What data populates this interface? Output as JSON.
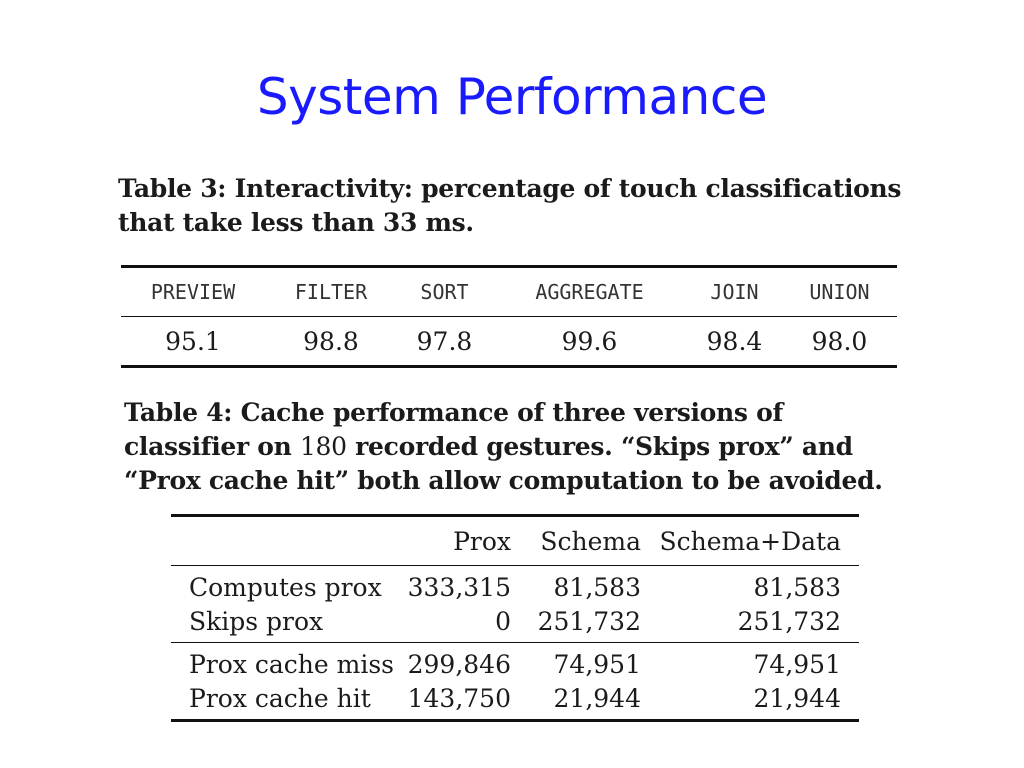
{
  "slide": {
    "title": "System Performance"
  },
  "table3": {
    "caption_label": "Table 3:",
    "caption_text": " Interactivity: percentage of touch classifications that take less than 33 ms.",
    "headers": [
      "PREVIEW",
      "FILTER",
      "SORT",
      "AGGREGATE",
      "JOIN",
      "UNION"
    ],
    "values": [
      "95.1",
      "98.8",
      "97.8",
      "99.6",
      "98.4",
      "98.0"
    ]
  },
  "table4": {
    "caption_label": "Table 4:",
    "caption_text_a": " Cache performance of three versions of classifier on ",
    "caption_num": "180",
    "caption_text_b": " recorded gestures. “Skips prox” and “Prox cache hit” both allow computation to be avoided.",
    "headers": [
      "",
      "Prox",
      "Schema",
      "Schema+Data"
    ],
    "rows": [
      [
        "Computes prox",
        "333,315",
        "81,583",
        "81,583"
      ],
      [
        "Skips prox",
        "0",
        "251,732",
        "251,732"
      ],
      [
        "Prox cache miss",
        "299,846",
        "74,951",
        "74,951"
      ],
      [
        "Prox cache hit",
        "143,750",
        "21,944",
        "21,944"
      ]
    ]
  },
  "colors": {
    "title": "#1a1aff",
    "text": "#1b1b1b"
  }
}
